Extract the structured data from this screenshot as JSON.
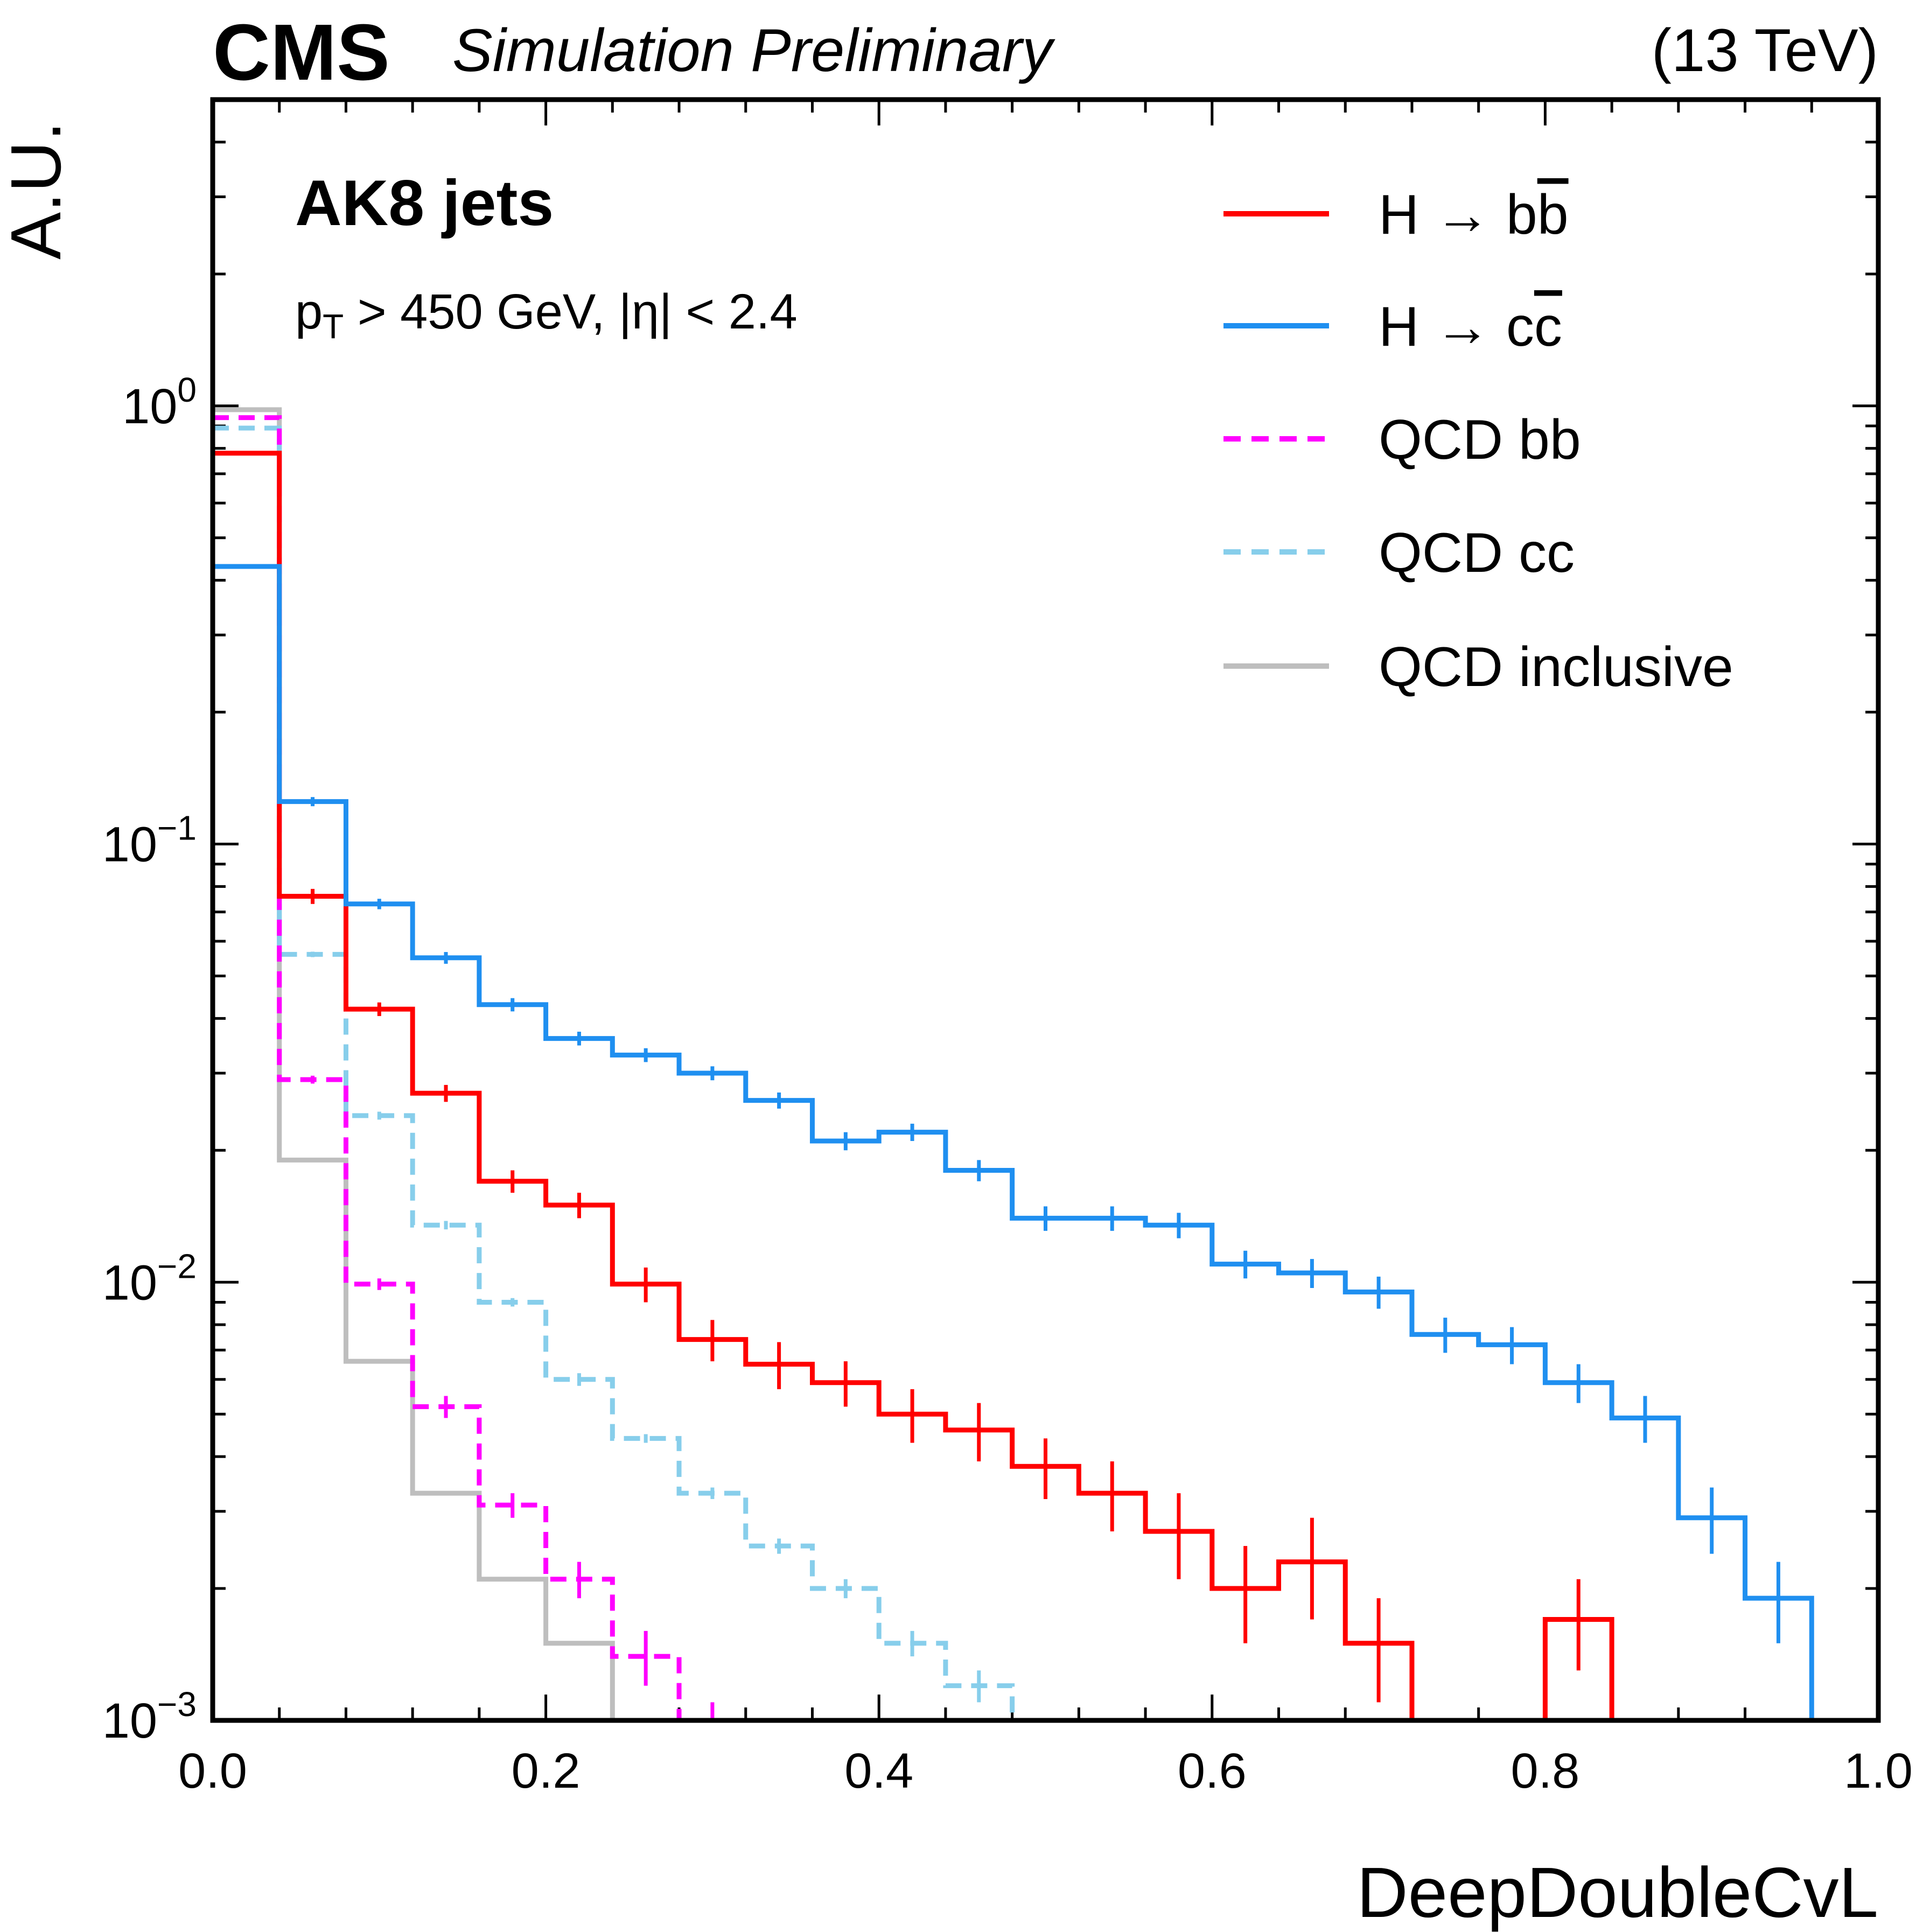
{
  "header": {
    "experiment": "CMS",
    "status": "Simulation Preliminary",
    "energy": "(13 TeV)"
  },
  "annotations": {
    "jets": "AK8 jets",
    "cut_pt": "p",
    "cut_pt_sub": "T",
    "cut_rest": " > 450 GeV, |η| < 2.4"
  },
  "chart_data": {
    "type": "line",
    "style": "step-histogram",
    "xlabel": "DeepDoubleCvL",
    "ylabel": "A.U.",
    "xlim": [
      0.0,
      1.0
    ],
    "ylim": [
      0.001,
      5.0
    ],
    "yscale": "log",
    "xticks": [
      "0.0",
      "0.2",
      "0.4",
      "0.6",
      "0.8",
      "1.0"
    ],
    "yticks": [
      {
        "base": "10",
        "exp": "0",
        "value": 1
      },
      {
        "base": "10",
        "exp": "−1",
        "value": 0.1
      },
      {
        "base": "10",
        "exp": "−2",
        "value": 0.01
      },
      {
        "base": "10",
        "exp": "−3",
        "value": 0.001
      }
    ],
    "legend_position": "top-right",
    "bin_edges": [
      0.0,
      0.04,
      0.08,
      0.12,
      0.16,
      0.2,
      0.24,
      0.28,
      0.32,
      0.36,
      0.4,
      0.44,
      0.48,
      0.52,
      0.56,
      0.6,
      0.64,
      0.68,
      0.72,
      0.76,
      0.8,
      0.84,
      0.88,
      0.92,
      0.96,
      1.0
    ],
    "series": [
      {
        "name": "H → bb̄",
        "legend_main": "H → b",
        "legend_bar": "b",
        "color": "#ff0000",
        "dashed": false,
        "values": [
          0.78,
          0.076,
          0.042,
          0.027,
          0.017,
          0.015,
          0.0099,
          0.0074,
          0.0065,
          0.0059,
          0.005,
          0.0046,
          0.0038,
          0.0033,
          0.0027,
          0.002,
          0.0023,
          0.0015,
          0.0,
          0.0,
          0.0017,
          0.0,
          0.0,
          0.0,
          0.0,
          0.0
        ],
        "errors": [
          0.0,
          0.003,
          0.0015,
          0.0012,
          0.001,
          0.001,
          0.0009,
          0.0008,
          0.0008,
          0.0007,
          0.0007,
          0.0007,
          0.0006,
          0.0006,
          0.0006,
          0.0005,
          0.0006,
          0.0004,
          0.0,
          0.0,
          0.0004,
          0.0,
          0.0,
          0.0,
          0.0,
          0.0
        ]
      },
      {
        "name": "H → cc̄",
        "legend_main": "H → c",
        "legend_bar": "c",
        "color": "#1f8ff0",
        "dashed": false,
        "values": [
          0.43,
          0.125,
          0.073,
          0.055,
          0.043,
          0.036,
          0.033,
          0.03,
          0.026,
          0.021,
          0.022,
          0.018,
          0.014,
          0.014,
          0.0135,
          0.011,
          0.0105,
          0.0095,
          0.0076,
          0.0072,
          0.0059,
          0.0049,
          0.0029,
          0.0019,
          0.0009
        ],
        "errors": [
          0.0,
          0.003,
          0.002,
          0.0017,
          0.0015,
          0.0013,
          0.0012,
          0.0011,
          0.0011,
          0.001,
          0.001,
          0.001,
          0.0009,
          0.0009,
          0.0009,
          0.0008,
          0.0008,
          0.0008,
          0.0007,
          0.0007,
          0.0006,
          0.0006,
          0.0005,
          0.0004,
          0.0
        ]
      },
      {
        "name": "QCD bb",
        "color": "#ff00ff",
        "dashed": true,
        "values": [
          0.94,
          0.029,
          0.0099,
          0.0052,
          0.0031,
          0.0021,
          0.0014,
          0.001,
          0.0009
        ],
        "errors": [
          0.0,
          0.0006,
          0.0003,
          0.0003,
          0.0002,
          0.0002,
          0.0002,
          0.0001,
          0.0
        ]
      },
      {
        "name": "QCD cc",
        "color": "#87ceeb",
        "dashed": true,
        "values": [
          0.89,
          0.056,
          0.024,
          0.0135,
          0.009,
          0.006,
          0.0044,
          0.0033,
          0.0025,
          0.002,
          0.0015,
          0.0012,
          0.0009
        ],
        "errors": [
          0.0,
          0.0008,
          0.0005,
          0.0003,
          0.0002,
          0.0002,
          0.0001,
          0.0001,
          0.0001,
          0.0001,
          0.0001,
          0.0001,
          0.0
        ]
      },
      {
        "name": "QCD inclusive",
        "color": "#bebebe",
        "dashed": false,
        "values": [
          0.98,
          0.019,
          0.0066,
          0.0033,
          0.0021,
          0.0015,
          0.0009
        ],
        "errors": [
          0.0,
          0.0,
          0.0,
          0.0,
          0.0,
          0.0,
          0.0
        ]
      }
    ]
  }
}
